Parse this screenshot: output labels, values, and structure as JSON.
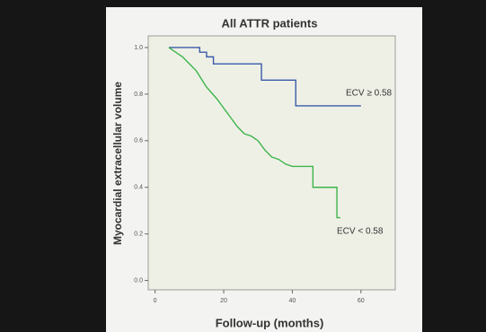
{
  "chart_data": {
    "type": "line",
    "title": "All ATTR patients",
    "x_label": "Follow-up (months)",
    "y_label": "Myocardial extracellular volume",
    "xlim": [
      -2,
      70
    ],
    "ylim": [
      -0.04,
      1.05
    ],
    "xticks": [
      0,
      20,
      40,
      60
    ],
    "yticks": [
      {
        "value": 0,
        "label": "0.0"
      },
      {
        "value": 0.2,
        "label": "0.2"
      },
      {
        "value": 0.4,
        "label": "0.4"
      },
      {
        "value": 0.6,
        "label": "0.6"
      },
      {
        "value": 0.8,
        "label": "0.8"
      },
      {
        "value": 1,
        "label": "1.0"
      }
    ],
    "series": [
      {
        "name": "ECV ≥ 0.58",
        "color": "#3a5aa8",
        "x": [
          4,
          13,
          13,
          15,
          15,
          17,
          17,
          31,
          31,
          41,
          41,
          60
        ],
        "values": [
          1,
          1,
          0.98,
          0.98,
          0.96,
          0.96,
          0.93,
          0.93,
          0.86,
          0.86,
          0.75,
          0.75
        ]
      },
      {
        "name": "ECV < 0.58",
        "color": "#3cb54a",
        "x": [
          4,
          6,
          8,
          10,
          12,
          15,
          18,
          20,
          22,
          24,
          26,
          28,
          30,
          32,
          34,
          36,
          38,
          40,
          46,
          46,
          53,
          53,
          54
        ],
        "values": [
          1,
          0.98,
          0.96,
          0.93,
          0.9,
          0.83,
          0.78,
          0.74,
          0.7,
          0.66,
          0.63,
          0.62,
          0.6,
          0.56,
          0.53,
          0.52,
          0.5,
          0.49,
          0.49,
          0.4,
          0.4,
          0.27,
          0.27
        ]
      }
    ]
  }
}
